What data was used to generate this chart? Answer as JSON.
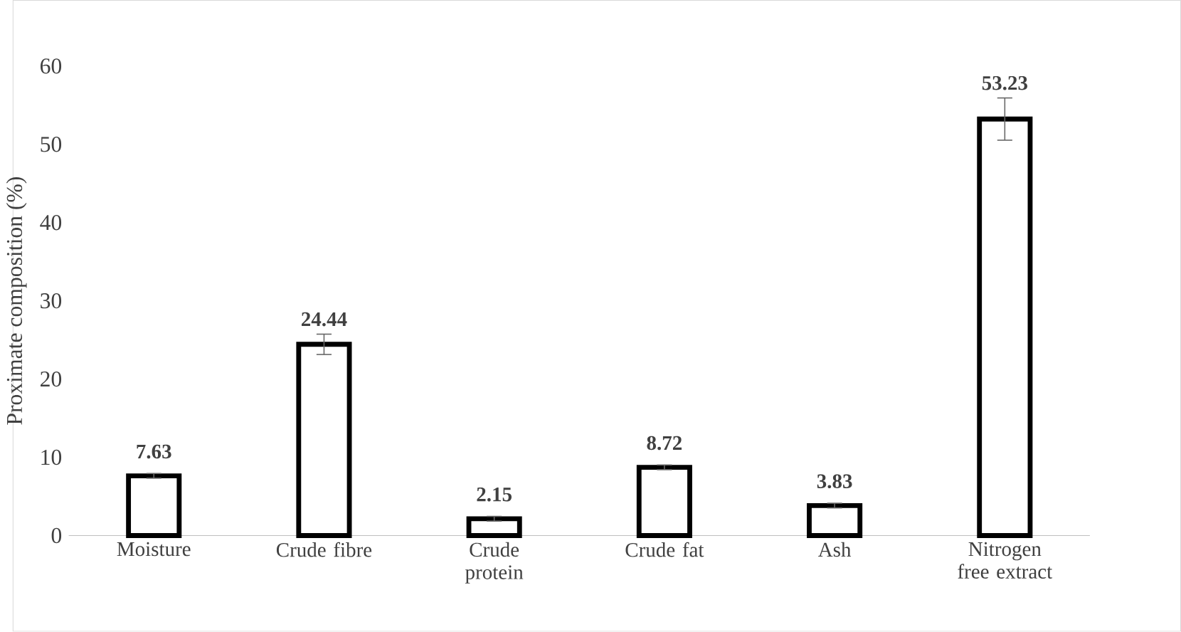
{
  "chart_data": {
    "type": "bar",
    "ylabel": "Proximate composition (%)",
    "categories": [
      "Moisture",
      "Crude fibre",
      "Crude protein",
      "Crude fat",
      "Ash",
      "Nitrogen free extract"
    ],
    "values": [
      7.63,
      24.44,
      2.15,
      8.72,
      3.83,
      53.23
    ],
    "errors": [
      0.3,
      1.3,
      0.3,
      0.3,
      0.3,
      2.7
    ],
    "color": "#000000",
    "ylim": [
      0,
      60
    ],
    "yticks": [
      0,
      10,
      20,
      30,
      40,
      50,
      60
    ],
    "data_labels": true
  }
}
